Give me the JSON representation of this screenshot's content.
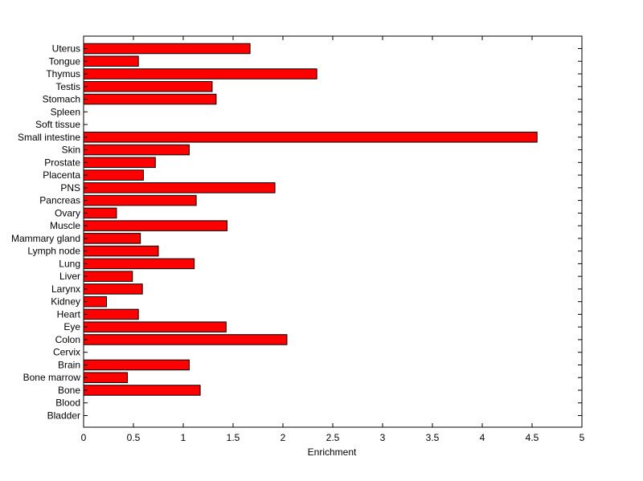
{
  "chart_data": {
    "type": "bar",
    "orientation": "horizontal",
    "categories": [
      "Uterus",
      "Tongue",
      "Thymus",
      "Testis",
      "Stomach",
      "Spleen",
      "Soft tissue",
      "Small intestine",
      "Skin",
      "Prostate",
      "Placenta",
      "PNS",
      "Pancreas",
      "Ovary",
      "Muscle",
      "Mammary gland",
      "Lymph node",
      "Lung",
      "Liver",
      "Larynx",
      "Kidney",
      "Heart",
      "Eye",
      "Colon",
      "Cervix",
      "Brain",
      "Bone marrow",
      "Bone",
      "Blood",
      "Bladder"
    ],
    "values": [
      1.67,
      0.55,
      2.34,
      1.29,
      1.33,
      0,
      0,
      4.55,
      1.06,
      0.72,
      0.6,
      1.92,
      1.13,
      0.33,
      1.44,
      0.57,
      0.75,
      1.11,
      0.49,
      0.59,
      0.23,
      0.55,
      1.43,
      2.04,
      0,
      1.06,
      0.44,
      1.17,
      0,
      0
    ],
    "xlabel": "Enrichment",
    "ylabel": "",
    "xlim": [
      0,
      5
    ],
    "xticks": [
      "0",
      "0.5",
      "1",
      "1.5",
      "2",
      "2.5",
      "3",
      "3.5",
      "4",
      "4.5",
      "5"
    ],
    "bar_color": "#ff0000",
    "bar_edge_color": "#000000",
    "grid": false,
    "legend": "none"
  }
}
